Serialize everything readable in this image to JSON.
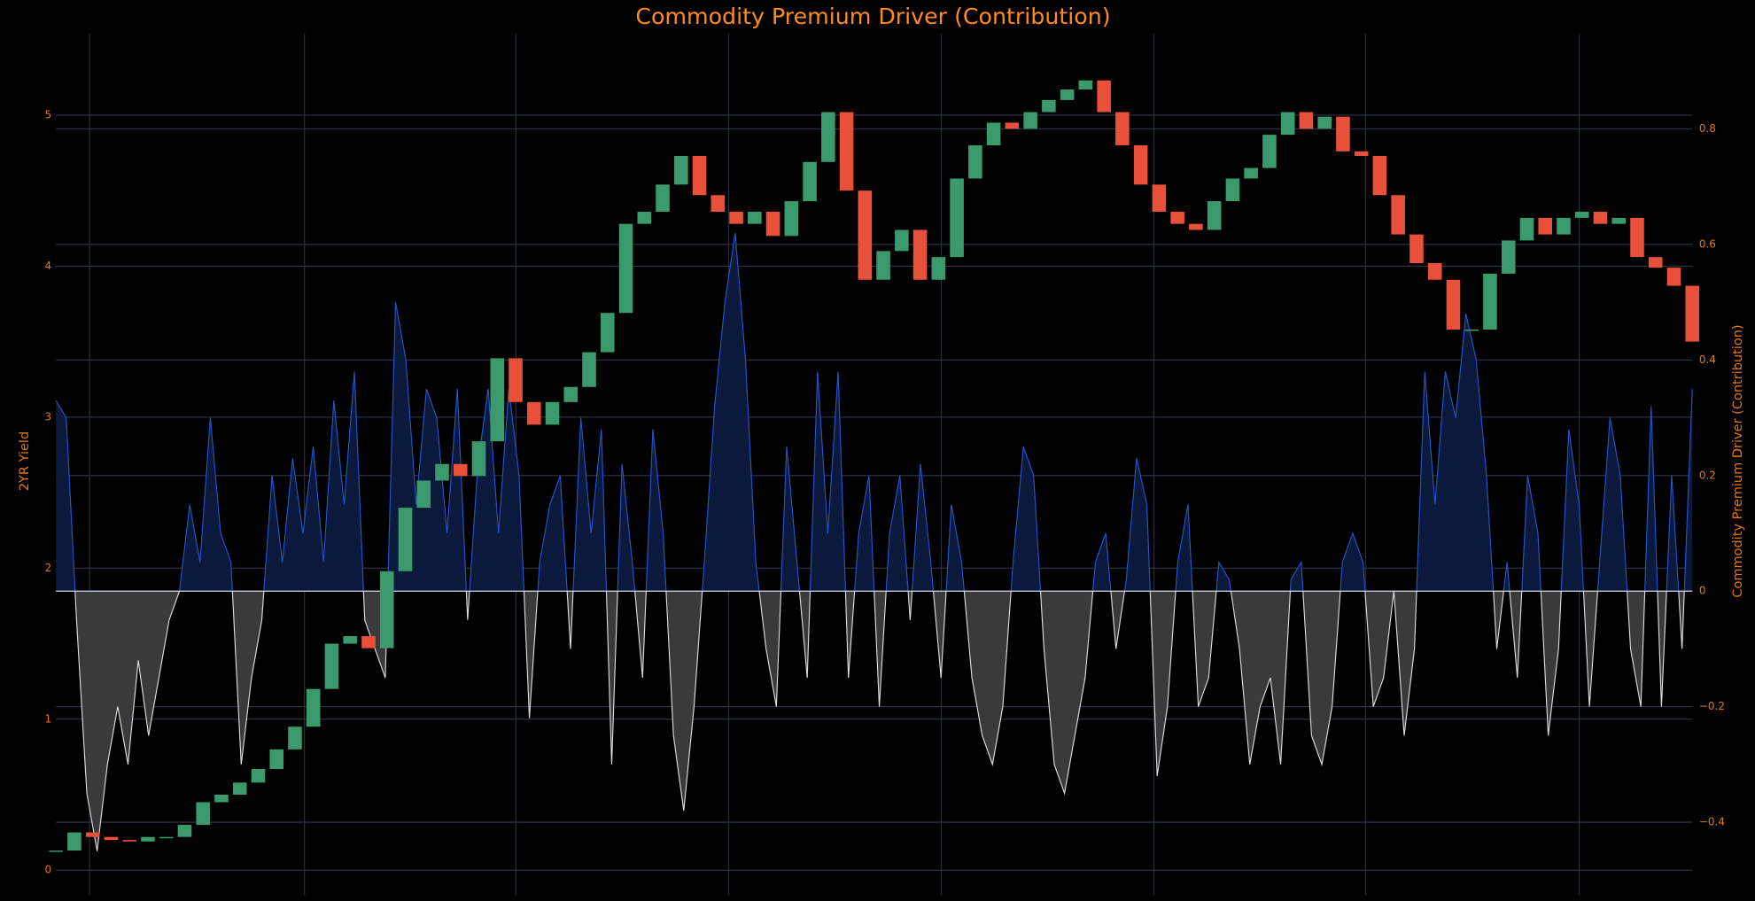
{
  "chart_data": {
    "type": "candlestick",
    "title": "Commodity Premium Driver (Contribution)",
    "ylabel": "2YR Yield",
    "y2label": "Commodity Premium Driver (Contribution)",
    "ylim": [
      -0.13,
      5.54
    ],
    "yticks": [
      0,
      1,
      2,
      3,
      4,
      5
    ],
    "y2lim": [
      -0.517,
      0.965
    ],
    "y2ticks": [
      {
        "value": -0.4,
        "label": "−0.4"
      },
      {
        "value": -0.2,
        "label": "−0.2"
      },
      0,
      0.2,
      0.4,
      0.6,
      0.8
    ],
    "grid": true,
    "series": [
      {
        "type": "candlestick",
        "up_color": "#3a9a6e",
        "down_color": "#e8503a",
        "values": [
          0.13,
          0.25,
          0.22,
          0.2,
          0.19,
          0.22,
          0.22,
          0.3,
          0.45,
          0.5,
          0.58,
          0.67,
          0.8,
          0.95,
          1.2,
          1.5,
          1.55,
          1.47,
          1.98,
          2.4,
          2.58,
          2.69,
          2.61,
          2.84,
          3.39,
          3.1,
          2.95,
          3.1,
          3.2,
          3.43,
          3.69,
          4.28,
          4.36,
          4.54,
          4.73,
          4.47,
          4.36,
          4.28,
          4.36,
          4.2,
          4.43,
          4.69,
          5.02,
          4.5,
          3.91,
          4.1,
          4.24,
          3.91,
          4.06,
          4.58,
          4.8,
          4.95,
          4.91,
          5.02,
          5.1,
          5.17,
          5.23,
          5.02,
          4.8,
          4.54,
          4.36,
          4.28,
          4.24,
          4.43,
          4.58,
          4.65,
          4.87,
          5.02,
          4.91,
          4.99,
          4.76,
          4.73,
          4.47,
          4.21,
          4.02,
          3.91,
          3.58,
          3.58,
          3.95,
          4.17,
          4.32,
          4.21,
          4.32,
          4.36,
          4.28,
          4.32,
          4.06,
          3.99,
          3.87,
          3.5
        ]
      },
      {
        "type": "area",
        "axis": "y2",
        "pos_color": "#2255cc",
        "pos_fill": "#0b1a3c",
        "neg_color": "#dddddd",
        "neg_fill": "#3a3a3a",
        "values": [
          0.33,
          0.3,
          -0.05,
          -0.35,
          -0.45,
          -0.3,
          -0.2,
          -0.3,
          -0.12,
          -0.25,
          -0.15,
          -0.05,
          0.0,
          0.15,
          0.05,
          0.3,
          0.1,
          0.05,
          -0.3,
          -0.15,
          -0.05,
          0.2,
          0.05,
          0.23,
          0.1,
          0.25,
          0.05,
          0.33,
          0.15,
          0.38,
          -0.05,
          -0.1,
          -0.15,
          0.5,
          0.4,
          0.15,
          0.35,
          0.3,
          0.1,
          0.35,
          -0.05,
          0.22,
          0.35,
          0.1,
          0.35,
          0.2,
          -0.22,
          0.05,
          0.15,
          0.2,
          -0.1,
          0.3,
          0.1,
          0.28,
          -0.3,
          0.22,
          0.05,
          -0.15,
          0.28,
          0.1,
          -0.25,
          -0.38,
          -0.2,
          0.05,
          0.32,
          0.5,
          0.62,
          0.4,
          0.05,
          -0.1,
          -0.2,
          0.25,
          0.05,
          -0.15,
          0.38,
          0.1,
          0.38,
          -0.15,
          0.1,
          0.2,
          -0.2,
          0.1,
          0.2,
          -0.05,
          0.22,
          0.05,
          -0.15,
          0.15,
          0.05,
          -0.15,
          -0.25,
          -0.3,
          -0.2,
          0.05,
          0.25,
          0.2,
          -0.1,
          -0.3,
          -0.35,
          -0.25,
          -0.15,
          0.05,
          0.1,
          -0.1,
          0.02,
          0.23,
          0.15,
          -0.32,
          -0.2,
          0.05,
          0.15,
          -0.2,
          -0.15,
          0.05,
          0.02,
          -0.1,
          -0.3,
          -0.2,
          -0.15,
          -0.3,
          0.02,
          0.05,
          -0.25,
          -0.3,
          -0.2,
          0.05,
          0.1,
          0.05,
          -0.2,
          -0.15,
          0.0,
          -0.25,
          -0.1,
          0.38,
          0.15,
          0.38,
          0.3,
          0.48,
          0.4,
          0.2,
          -0.1,
          0.05,
          -0.15,
          0.2,
          0.1,
          -0.25,
          -0.1,
          0.28,
          0.15,
          -0.2,
          0.05,
          0.3,
          0.2,
          -0.1,
          -0.2,
          0.32,
          -0.2,
          0.2,
          -0.1,
          0.35
        ]
      }
    ]
  }
}
